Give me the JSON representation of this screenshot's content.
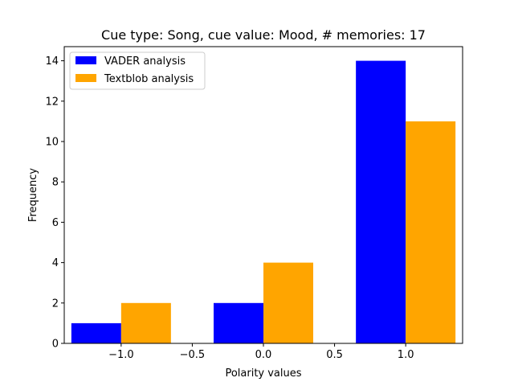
{
  "chart_data": {
    "type": "bar",
    "title": "Cue type: Song, cue value: Mood, # memories: 17",
    "xlabel": "Polarity values",
    "ylabel": "Frequency",
    "x": [
      -1.0,
      0.0,
      1.0
    ],
    "series": [
      {
        "name": "VADER analysis",
        "values": [
          1,
          2,
          14
        ],
        "color": "#0000ff"
      },
      {
        "name": "Textblob analysis",
        "values": [
          2,
          4,
          11
        ],
        "color": "#ffa500"
      }
    ],
    "xlim": [
      -1.4,
      1.4
    ],
    "ylim": [
      0,
      14.7
    ],
    "xticks": [
      -1.0,
      -0.5,
      0.0,
      0.5,
      1.0
    ],
    "xtick_labels": [
      "−1.0",
      "−0.5",
      "0.0",
      "0.5",
      "1.0"
    ],
    "yticks": [
      0,
      2,
      4,
      6,
      8,
      10,
      12,
      14
    ],
    "ytick_labels": [
      "0",
      "2",
      "4",
      "6",
      "8",
      "10",
      "12",
      "14"
    ],
    "grid": false,
    "legend_position": "top-left"
  }
}
